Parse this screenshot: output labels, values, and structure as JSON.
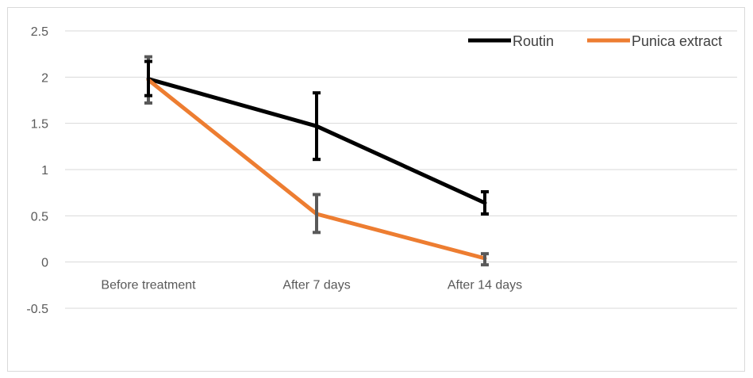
{
  "chart_data": {
    "type": "line",
    "categories": [
      "Before treatment",
      "After 7 days",
      "After 14 days"
    ],
    "ylim": [
      -0.5,
      2.5
    ],
    "yticks": [
      "2.5",
      "2",
      "1.5",
      "1",
      "0.5",
      "0",
      "-0.5"
    ],
    "grid": true,
    "legend_position": "top-right",
    "series": [
      {
        "name": "Routin",
        "color": "#000000",
        "values": [
          1.98,
          1.47,
          0.64
        ],
        "error_low": [
          1.8,
          1.11,
          0.52
        ],
        "error_high": [
          2.17,
          1.83,
          0.76
        ],
        "error_color": "#000000"
      },
      {
        "name": "Punica extract",
        "color": "#ed7d31",
        "values": [
          1.97,
          0.52,
          0.04
        ],
        "error_low": [
          1.72,
          0.32,
          -0.03
        ],
        "error_high": [
          2.22,
          0.73,
          0.09
        ],
        "error_color": "#595959"
      }
    ]
  }
}
